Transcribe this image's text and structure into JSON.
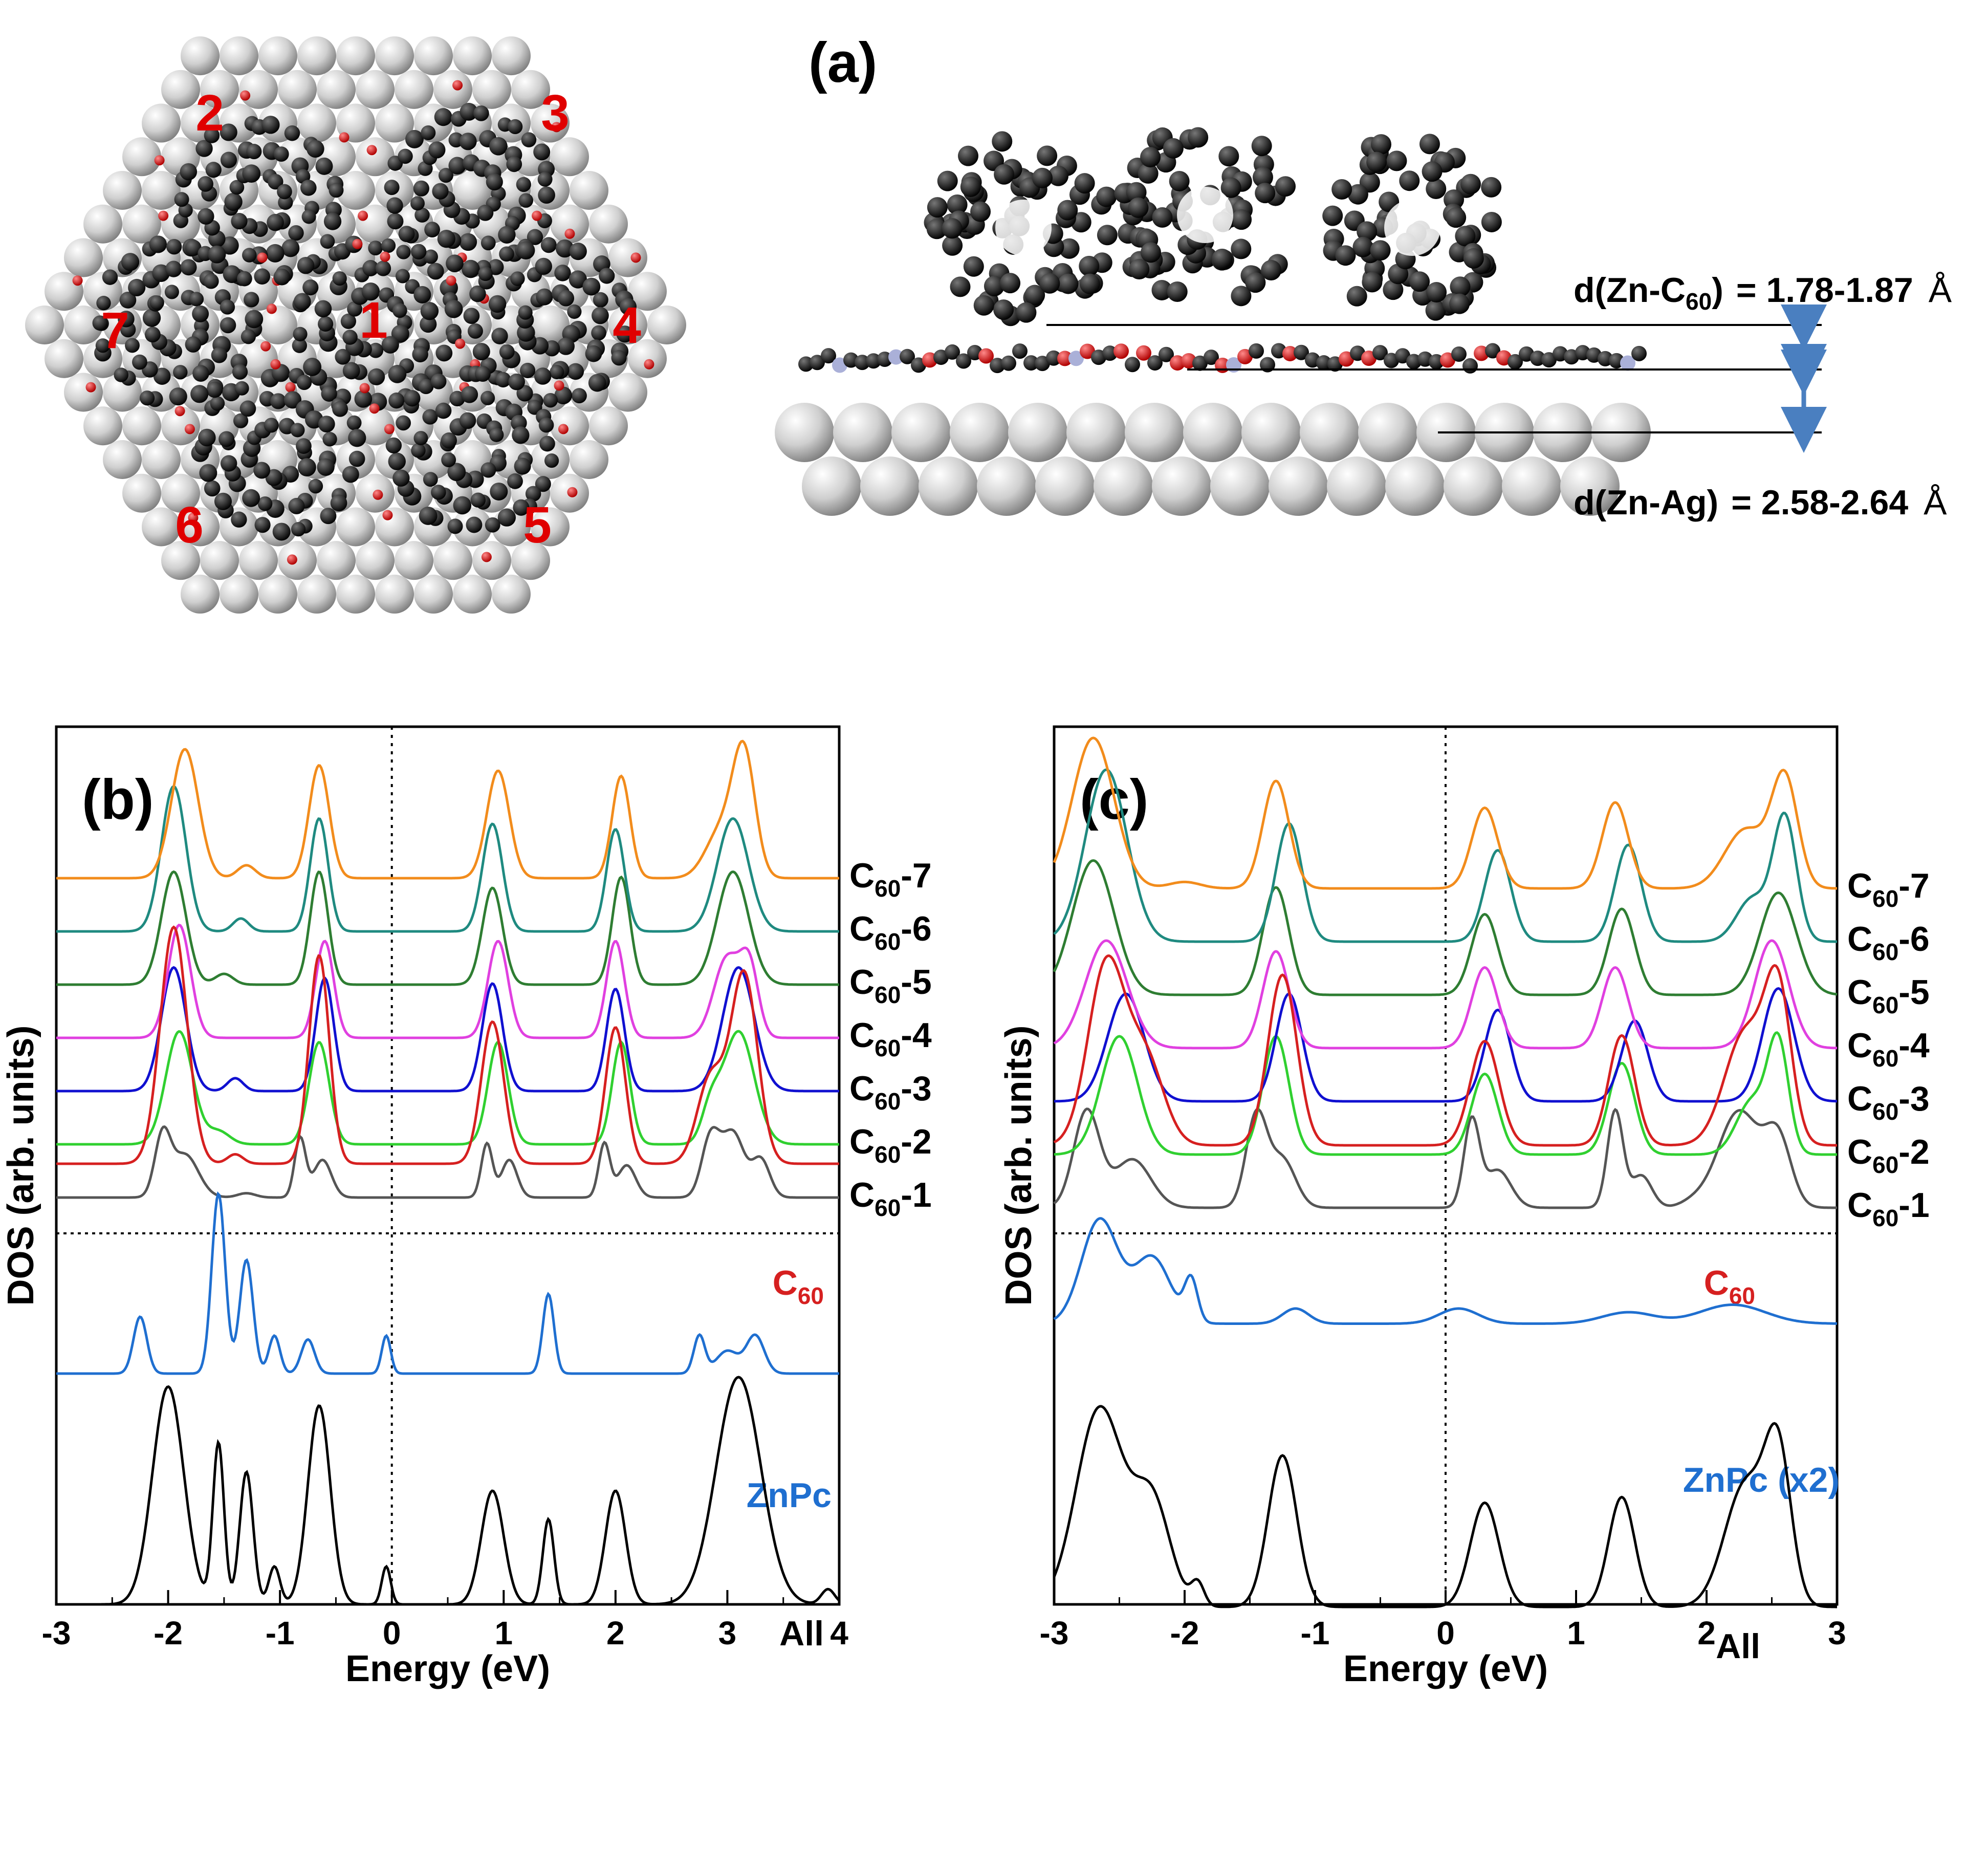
{
  "figure_labels": {
    "a": "(a)",
    "b": "(b)",
    "c": "(c)"
  },
  "molecule_numbers": [
    "1",
    "2",
    "3",
    "4",
    "5",
    "6",
    "7"
  ],
  "distances": {
    "zn_c60_prefix": "d(Zn-C",
    "zn_c60_sub": "60",
    "zn_c60_suffix": ")",
    "zn_c60_value": "= 1.78-1.87",
    "zn_ag_label": "d(Zn-Ag)",
    "zn_ag_value": "= 2.58-2.64",
    "unit": "Å"
  },
  "colors": {
    "c60_7": "#f28c1c",
    "c60_6": "#1f8a80",
    "c60_5": "#2e7d32",
    "c60_4": "#e040e0",
    "c60_3": "#1010d0",
    "c60_2": "#30d030",
    "c60_1": "#555555",
    "c60_total": "#d62020",
    "znpc": "#1f6fd0",
    "all": "#000000",
    "ag_atom": "#c8c8c8",
    "carbon": "#1a1a1a",
    "oxygen": "#d81f1f",
    "nitrogen": "#aab0d8",
    "arrow": "#4a7fc0"
  },
  "chart_data": [
    {
      "panel": "(b)",
      "type": "line",
      "xlabel": "Energy (eV)",
      "ylabel": "DOS (arb. units)",
      "xlim": [
        -3,
        4
      ],
      "xticks": [
        "-3",
        "-2",
        "-1",
        "0",
        "1",
        "2",
        "3",
        "4"
      ],
      "fermi_line_x": 0,
      "top_series_offsets": [
        0,
        1,
        2,
        3,
        4,
        5,
        6
      ],
      "series": [
        {
          "name": "C60-1",
          "sub": "60",
          "base": "C",
          "tail": "-1",
          "color_key": "c60_1",
          "panel": "top",
          "peaks": [
            [
              -2.05,
              0.55,
              0.07
            ],
            [
              -1.85,
              0.4,
              0.12
            ],
            [
              -0.82,
              0.55,
              0.05
            ],
            [
              -0.62,
              0.35,
              0.08
            ],
            [
              0.85,
              0.5,
              0.05
            ],
            [
              1.05,
              0.35,
              0.07
            ],
            [
              1.9,
              0.5,
              0.05
            ],
            [
              2.1,
              0.3,
              0.08
            ],
            [
              2.85,
              0.55,
              0.08
            ],
            [
              3.05,
              0.6,
              0.1
            ],
            [
              3.3,
              0.35,
              0.08
            ],
            [
              -1.3,
              0.04,
              0.08
            ]
          ]
        },
        {
          "name": "C60-2",
          "sub": "60",
          "base": "C",
          "tail": "-2",
          "color_key": "c60_2",
          "panel": "top",
          "peaks": [
            [
              -1.9,
              1.05,
              0.12
            ],
            [
              -1.55,
              0.12,
              0.1
            ],
            [
              -0.65,
              0.95,
              0.09
            ],
            [
              0.95,
              0.95,
              0.09
            ],
            [
              2.05,
              0.95,
              0.08
            ],
            [
              3.1,
              1.05,
              0.14
            ],
            [
              2.85,
              0.3,
              0.08
            ]
          ]
        },
        {
          "name": "C60-3",
          "sub": "60",
          "base": "C",
          "tail": "-3",
          "color_key": "c60_3",
          "panel": "top",
          "peaks": [
            [
              -1.95,
              1.15,
              0.11
            ],
            [
              -1.4,
              0.12,
              0.07
            ],
            [
              -0.6,
              1.05,
              0.08
            ],
            [
              0.9,
              1.0,
              0.09
            ],
            [
              2.0,
              0.95,
              0.08
            ],
            [
              3.1,
              1.15,
              0.14
            ]
          ]
        },
        {
          "name": "C60-4",
          "sub": "60",
          "base": "C",
          "tail": "-4",
          "color_key": "c60_4",
          "panel": "top",
          "peaks": [
            [
              -1.9,
              1.05,
              0.1
            ],
            [
              -0.6,
              0.9,
              0.08
            ],
            [
              0.95,
              0.9,
              0.09
            ],
            [
              2.0,
              0.9,
              0.08
            ],
            [
              3.0,
              0.75,
              0.12
            ],
            [
              3.2,
              0.6,
              0.08
            ]
          ]
        },
        {
          "name": "C60-5",
          "sub": "60",
          "base": "C",
          "tail": "-5",
          "color_key": "c60_5",
          "panel": "top",
          "peaks": [
            [
              -1.95,
              1.05,
              0.11
            ],
            [
              -1.5,
              0.1,
              0.08
            ],
            [
              -0.65,
              1.05,
              0.08
            ],
            [
              0.9,
              0.9,
              0.09
            ],
            [
              2.05,
              1.0,
              0.08
            ],
            [
              3.05,
              1.05,
              0.14
            ]
          ]
        },
        {
          "name": "C60-6",
          "sub": "60",
          "base": "C",
          "tail": "-6",
          "color_key": "c60_6",
          "panel": "top",
          "peaks": [
            [
              -1.95,
              1.35,
              0.11
            ],
            [
              -1.35,
              0.12,
              0.07
            ],
            [
              -0.65,
              1.05,
              0.08
            ],
            [
              0.9,
              1.0,
              0.09
            ],
            [
              2.0,
              0.95,
              0.08
            ],
            [
              3.05,
              1.05,
              0.14
            ]
          ]
        },
        {
          "name": "C60-7",
          "sub": "60",
          "base": "C",
          "tail": "-7",
          "color_key": "c60_7",
          "panel": "top",
          "peaks": [
            [
              -1.85,
              1.2,
              0.12
            ],
            [
              -1.3,
              0.12,
              0.08
            ],
            [
              -0.65,
              1.05,
              0.09
            ],
            [
              0.95,
              1.0,
              0.1
            ],
            [
              2.05,
              0.95,
              0.08
            ],
            [
              2.95,
              0.45,
              0.14
            ],
            [
              3.15,
              1.1,
              0.1
            ]
          ]
        },
        {
          "name": "C60",
          "sub": "60",
          "base": "C",
          "tail": "",
          "color_key": "c60_total",
          "panel": "bottom",
          "offset": 2.1,
          "peaks": [
            [
              -1.95,
              1.25,
              0.12
            ],
            [
              -1.4,
              0.05,
              0.07
            ],
            [
              -0.65,
              1.1,
              0.09
            ],
            [
              0.9,
              0.75,
              0.1
            ],
            [
              2.0,
              0.72,
              0.09
            ],
            [
              2.85,
              0.45,
              0.12
            ],
            [
              3.15,
              1.0,
              0.12
            ]
          ]
        },
        {
          "name": "ZnPc",
          "sub": "",
          "base": "ZnPc",
          "tail": "",
          "color_key": "znpc",
          "panel": "bottom",
          "offset": 1.1,
          "peaks": [
            [
              -2.25,
              0.3,
              0.06
            ],
            [
              -1.55,
              0.95,
              0.06
            ],
            [
              -1.3,
              0.6,
              0.06
            ],
            [
              -1.05,
              0.2,
              0.05
            ],
            [
              -0.75,
              0.18,
              0.06
            ],
            [
              -0.05,
              0.2,
              0.04
            ],
            [
              1.4,
              0.42,
              0.05
            ],
            [
              2.75,
              0.2,
              0.05
            ],
            [
              3.25,
              0.2,
              0.08
            ],
            [
              3.0,
              0.12,
              0.1
            ]
          ]
        },
        {
          "name": "All",
          "sub": "",
          "base": "All",
          "tail": "",
          "color_key": "all",
          "panel": "bottom",
          "offset": 0,
          "peaks": [
            [
              -2.0,
              1.15,
              0.14
            ],
            [
              -1.55,
              0.85,
              0.05
            ],
            [
              -1.3,
              0.7,
              0.06
            ],
            [
              -1.05,
              0.2,
              0.05
            ],
            [
              -0.65,
              1.05,
              0.1
            ],
            [
              -0.05,
              0.2,
              0.04
            ],
            [
              0.9,
              0.6,
              0.1
            ],
            [
              1.4,
              0.45,
              0.05
            ],
            [
              2.0,
              0.6,
              0.09
            ],
            [
              3.1,
              1.2,
              0.2
            ],
            [
              3.9,
              0.08,
              0.06
            ]
          ]
        }
      ]
    },
    {
      "panel": "(c)",
      "type": "line",
      "xlabel": "Energy (eV)",
      "ylabel": "DOS (arb. units)",
      "xlim": [
        -3,
        3
      ],
      "xticks": [
        "-3",
        "-2",
        "-1",
        "0",
        "1",
        "2",
        "3"
      ],
      "fermi_line_x": 0,
      "top_series_offsets": [
        0,
        1,
        2,
        3,
        4,
        5,
        6
      ],
      "series": [
        {
          "name": "C60-1",
          "sub": "60",
          "base": "C",
          "tail": "-1",
          "color_key": "c60_1",
          "panel": "top",
          "peaks": [
            [
              -2.75,
              0.9,
              0.1
            ],
            [
              -2.4,
              0.45,
              0.14
            ],
            [
              -1.45,
              0.85,
              0.08
            ],
            [
              -1.25,
              0.45,
              0.1
            ],
            [
              0.2,
              0.8,
              0.06
            ],
            [
              0.4,
              0.35,
              0.1
            ],
            [
              1.3,
              0.9,
              0.06
            ],
            [
              1.5,
              0.3,
              0.08
            ],
            [
              2.25,
              0.9,
              0.16
            ],
            [
              2.55,
              0.6,
              0.1
            ],
            [
              1.9,
              0.05,
              0.1
            ]
          ]
        },
        {
          "name": "C60-2",
          "sub": "60",
          "base": "C",
          "tail": "-2",
          "color_key": "c60_2",
          "panel": "top",
          "peaks": [
            [
              -2.5,
              1.1,
              0.14
            ],
            [
              -1.3,
              1.1,
              0.1
            ],
            [
              0.3,
              0.75,
              0.1
            ],
            [
              1.35,
              0.85,
              0.1
            ],
            [
              2.35,
              0.5,
              0.12
            ],
            [
              2.55,
              1.0,
              0.08
            ]
          ]
        },
        {
          "name": "C60-3",
          "sub": "60",
          "base": "C",
          "tail": "-3",
          "color_key": "c60_3",
          "panel": "top",
          "peaks": [
            [
              -2.45,
              1.0,
              0.14
            ],
            [
              -1.2,
              1.0,
              0.1
            ],
            [
              0.4,
              0.85,
              0.1
            ],
            [
              1.45,
              0.75,
              0.1
            ],
            [
              2.55,
              1.05,
              0.12
            ]
          ]
        },
        {
          "name": "C60-4",
          "sub": "60",
          "base": "C",
          "tail": "-4",
          "color_key": "c60_4",
          "panel": "top",
          "peaks": [
            [
              -2.6,
              1.0,
              0.16
            ],
            [
              -1.3,
              0.9,
              0.1
            ],
            [
              0.3,
              0.75,
              0.1
            ],
            [
              1.3,
              0.75,
              0.1
            ],
            [
              2.5,
              1.0,
              0.13
            ]
          ]
        },
        {
          "name": "C60-5",
          "sub": "60",
          "base": "C",
          "tail": "-5",
          "color_key": "c60_5",
          "panel": "top",
          "peaks": [
            [
              -2.7,
              1.25,
              0.16
            ],
            [
              -1.3,
              1.0,
              0.1
            ],
            [
              0.3,
              0.75,
              0.1
            ],
            [
              1.35,
              0.8,
              0.1
            ],
            [
              2.55,
              0.95,
              0.14
            ]
          ]
        },
        {
          "name": "C60-6",
          "sub": "60",
          "base": "C",
          "tail": "-6",
          "color_key": "c60_6",
          "panel": "top",
          "peaks": [
            [
              -2.6,
              1.6,
              0.16
            ],
            [
              -1.2,
              1.1,
              0.1
            ],
            [
              0.4,
              0.85,
              0.1
            ],
            [
              1.4,
              0.9,
              0.1
            ],
            [
              2.35,
              0.4,
              0.12
            ],
            [
              2.6,
              1.15,
              0.09
            ]
          ]
        },
        {
          "name": "C60-7",
          "sub": "60",
          "base": "C",
          "tail": "-7",
          "color_key": "c60_7",
          "panel": "top",
          "peaks": [
            [
              -2.7,
              1.4,
              0.16
            ],
            [
              -1.3,
              1.0,
              0.1
            ],
            [
              -2.0,
              0.06,
              0.12
            ],
            [
              0.3,
              0.75,
              0.1
            ],
            [
              1.3,
              0.8,
              0.1
            ],
            [
              2.3,
              0.55,
              0.16
            ],
            [
              2.6,
              1.0,
              0.1
            ]
          ]
        },
        {
          "name": "C60",
          "sub": "60",
          "base": "C",
          "tail": "",
          "color_key": "c60_total",
          "panel": "bottom",
          "offset": 2.2,
          "peaks": [
            [
              -2.6,
              0.95,
              0.14
            ],
            [
              -2.3,
              0.45,
              0.14
            ],
            [
              -1.25,
              0.9,
              0.11
            ],
            [
              0.3,
              0.55,
              0.11
            ],
            [
              1.35,
              0.58,
              0.1
            ],
            [
              2.3,
              0.6,
              0.16
            ],
            [
              2.55,
              0.75,
              0.1
            ]
          ]
        },
        {
          "name": "ZnPc (x2)",
          "sub": "",
          "base": "ZnPc (x2)",
          "tail": "",
          "color_key": "znpc",
          "panel": "bottom",
          "offset": 1.35,
          "peaks": [
            [
              -2.65,
              0.55,
              0.14
            ],
            [
              -2.25,
              0.35,
              0.14
            ],
            [
              -1.95,
              0.22,
              0.05
            ],
            [
              -1.15,
              0.08,
              0.1
            ],
            [
              0.1,
              0.08,
              0.15
            ],
            [
              1.4,
              0.06,
              0.2
            ],
            [
              2.2,
              0.1,
              0.25
            ]
          ]
        },
        {
          "name": "All",
          "sub": "",
          "base": "All",
          "tail": "",
          "color_key": "all",
          "panel": "bottom",
          "offset": 0,
          "peaks": [
            [
              -2.65,
              1.05,
              0.18
            ],
            [
              -2.25,
              0.55,
              0.14
            ],
            [
              -1.9,
              0.12,
              0.05
            ],
            [
              -1.25,
              0.8,
              0.11
            ],
            [
              0.3,
              0.55,
              0.11
            ],
            [
              1.35,
              0.58,
              0.1
            ],
            [
              2.3,
              0.65,
              0.16
            ],
            [
              2.55,
              0.75,
              0.1
            ]
          ]
        }
      ]
    }
  ]
}
